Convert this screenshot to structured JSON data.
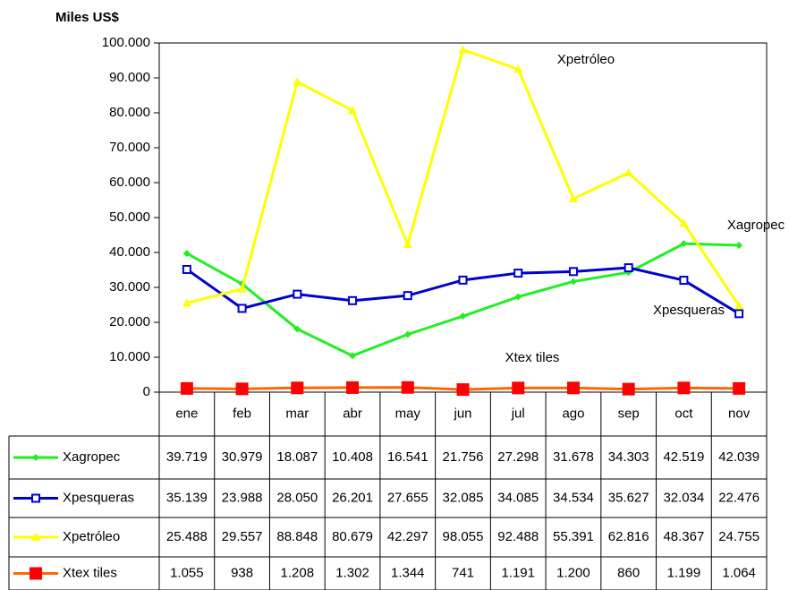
{
  "chart_data": {
    "type": "line",
    "y_axis_label": "Miles US$",
    "categories": [
      "ene",
      "feb",
      "mar",
      "abr",
      "may",
      "jun",
      "jul",
      "ago",
      "sep",
      "oct",
      "nov"
    ],
    "series": [
      {
        "name": "Xagropec",
        "color": "#22ee22",
        "marker": "diamond",
        "values": [
          39719,
          30979,
          18087,
          10408,
          16541,
          21756,
          27298,
          31678,
          34303,
          42519,
          42039
        ],
        "value_labels": [
          "39.719",
          "30.979",
          "18.087",
          "10.408",
          "16.541",
          "21.756",
          "27.298",
          "31.678",
          "34.303",
          "42.519",
          "42.039"
        ]
      },
      {
        "name": "Xpesqueras",
        "color": "#0000cc",
        "marker": "square",
        "values": [
          35139,
          23988,
          28050,
          26201,
          27655,
          32085,
          34085,
          34534,
          35627,
          32034,
          22476
        ],
        "value_labels": [
          "35.139",
          "23.988",
          "28.050",
          "26.201",
          "27.655",
          "32.085",
          "34.085",
          "34.534",
          "35.627",
          "32.034",
          "22.476"
        ]
      },
      {
        "name": "Xpetróleo",
        "color": "#ffff00",
        "marker": "triangle",
        "values": [
          25488,
          29557,
          88848,
          80679,
          42297,
          98055,
          92488,
          55391,
          62816,
          48367,
          24755
        ],
        "value_labels": [
          "25.488",
          "29.557",
          "88.848",
          "80.679",
          "42.297",
          "98.055",
          "92.488",
          "55.391",
          "62.816",
          "48.367",
          "24.755"
        ]
      },
      {
        "name": "Xtex tiles",
        "color": "#ff6600",
        "marker_color": "#ff0000",
        "marker": "bigsquare",
        "values": [
          1055,
          938,
          1208,
          1302,
          1344,
          741,
          1191,
          1200,
          860,
          1199,
          1064
        ],
        "value_labels": [
          "1.055",
          "938",
          "1.208",
          "1.302",
          "1.344",
          "741",
          "1.191",
          "1.200",
          "860",
          "1.199",
          "1.064"
        ]
      }
    ],
    "annotations": [
      "Xpetróleo",
      "Xagropec",
      "Xpesqueras",
      "Xtex tiles"
    ],
    "ylim": [
      0,
      100000
    ],
    "yticks": [
      0,
      {
        "value": 10000,
        "label": "10.000"
      },
      {
        "value": 20000,
        "label": "20.000"
      },
      {
        "value": 30000,
        "label": "30.000"
      },
      {
        "value": 40000,
        "label": "40.000"
      },
      {
        "value": 50000,
        "label": "50.000"
      },
      {
        "value": 60000,
        "label": "60.000"
      },
      {
        "value": 70000,
        "label": "70.000"
      },
      {
        "value": 80000,
        "label": "80.000"
      },
      {
        "value": 90000,
        "label": "90.000"
      },
      {
        "value": 100000,
        "label": "100.000"
      }
    ],
    "grid": false
  }
}
